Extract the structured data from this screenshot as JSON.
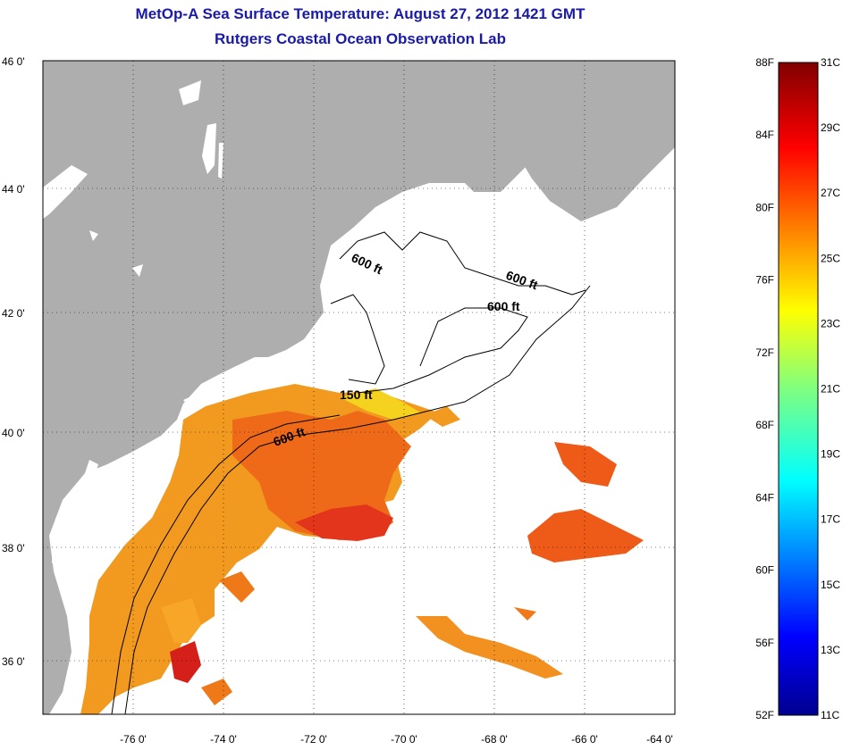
{
  "title": {
    "line1": "MetOp-A Sea Surface Temperature:  August 27, 2012 1421 GMT",
    "line2": "Rutgers Coastal Ocean Observation Lab"
  },
  "map": {
    "lon_range": [
      -77,
      -63
    ],
    "lat_range": [
      35,
      46
    ],
    "lon_ticks": [
      "-76 0'",
      "-74 0'",
      "-72 0'",
      "-70 0'",
      "-68 0'",
      "-66 0'",
      "-64 0'"
    ],
    "lat_ticks": [
      "46 0'",
      "44 0'",
      "42 0'",
      "40 0'",
      "38 0'",
      "36 0'"
    ],
    "contour_labels": [
      "600 ft",
      "600 ft",
      "600 ft",
      "150 ft",
      "600 ft"
    ],
    "colors": {
      "land": "#aeaeae",
      "ocean": "#ffffff",
      "grid": "#000000"
    }
  },
  "colorbar": {
    "left_labels": [
      "88F",
      "84F",
      "80F",
      "76F",
      "72F",
      "68F",
      "64F",
      "60F",
      "56F",
      "52F"
    ],
    "right_labels": [
      "31C",
      "29C",
      "27C",
      "25C",
      "23C",
      "21C",
      "19C",
      "17C",
      "15C",
      "13C",
      "11C"
    ],
    "range_c": [
      11,
      31
    ],
    "colormap": "jet"
  }
}
